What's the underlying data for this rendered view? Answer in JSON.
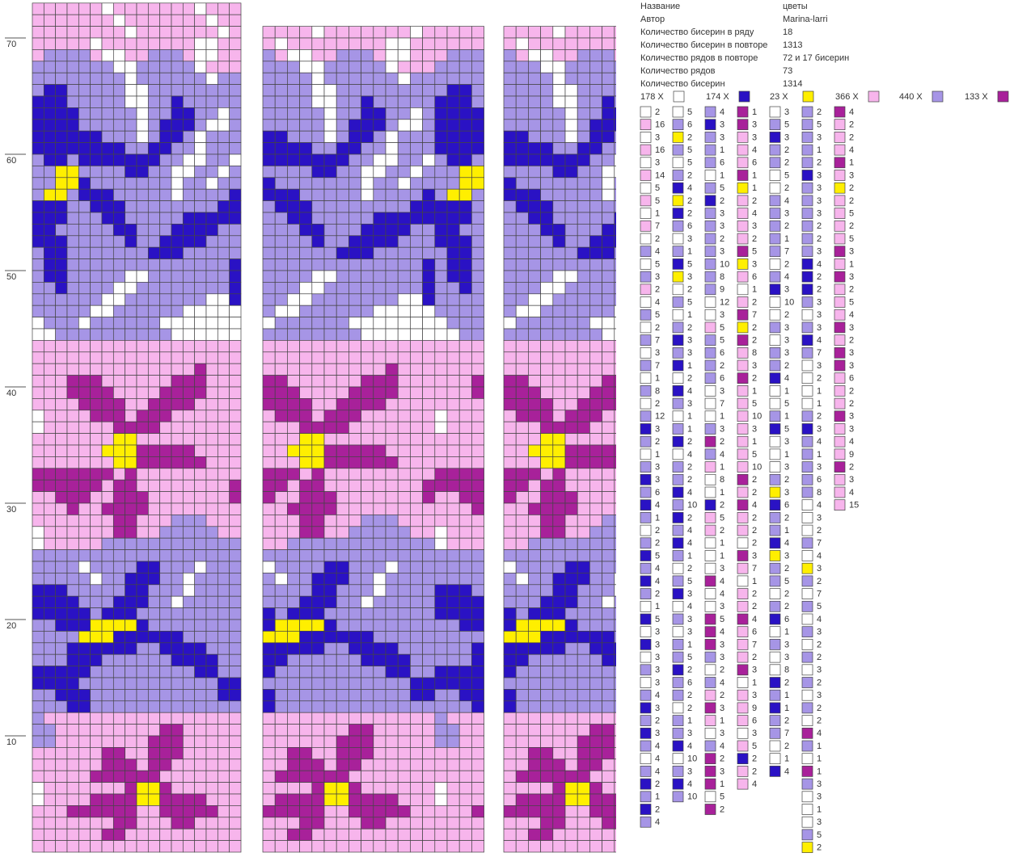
{
  "info": [
    [
      "Название",
      "цветы"
    ],
    [
      "Автор",
      "Marina-larri"
    ],
    [
      "Количество бисерин в ряду",
      "18"
    ],
    [
      "Количество бисерин в повторе",
      "1313"
    ],
    [
      "Количество рядов в повторе",
      "72 и 17 бисерин"
    ],
    [
      "Количество рядов",
      "73"
    ],
    [
      "Количество бисерин",
      "1314"
    ]
  ],
  "palette": {
    "W": "#ffffff",
    "D": "#2a12c4",
    "Y": "#ffef00",
    "P": "#f7b5ec",
    "L": "#a695e6",
    "M": "#a8219a"
  },
  "totals": [
    [
      "W",
      "178 X"
    ],
    [
      "D",
      "174 X"
    ],
    [
      "Y",
      "23 X"
    ],
    [
      "P",
      "366 X"
    ],
    [
      "L",
      "440 X"
    ],
    [
      "M",
      "133 X"
    ]
  ],
  "row_numbers": [
    10,
    20,
    30,
    40,
    50,
    60,
    70
  ],
  "grid": [
    "PPPPPPWPPPPPPPWPPP",
    "PPPPPPPWPPPPPPPWPP",
    "PPPPPPPPWPPPPPPPWP",
    "PPPPPWPPPPPPPPWWPP",
    "PLLLLPWWPPLLLPWWPP",
    "LLLLLLLWWLLLLLWPPP",
    "LLLLLLLLWLLLLLLWLL",
    "LDDLLLLLWWLLLLLLLL",
    "DDDLLLLLWWLLDLLLLL",
    "DDDDLLLLLWLLDDLLWL",
    "DDDDLLLLLWLDDDLWWL",
    "DDDDDDLLLWLDDLWLLL",
    "DDDDDDDDLLDDLLWLLL",
    "LDDLDDDDDDDLLWWLLW",
    "LLYYLLLLDDLLWWLLWL",
    "LLYYDLLLLLLLWLLWLL",
    "LYYLDDDLLLLLWLLLLD",
    "DDDLLDDDLLLLLLLLDD",
    "DDDLLLDDLLLLLDDDDD",
    "DDLLLLLDDLLLDDDDLL",
    "DDDLLLLLDLLDDDDLLL",
    "LDDLLLLLLLDDDLLLLL",
    "LDDLLLLLLLLLLLLLLD",
    "LDDLLLLLWWLLLLLLLD",
    "LLDLLLLWWLLLLLLLLD",
    "LLLLLLWWLLLLLLLWWD",
    "LLLLLWWLLLLLLWWWWW",
    "WLLLWLLLLLLWWWWWWW",
    "WWLLLLLLLLLLWWWWWW",
    "PPPPPPPPPPPPPPPPPP",
    "PPPPPPPPPPPPPPPPPP",
    "PPPPPPPPPPPPPPMPPP",
    "PPPMMMPPPPPPMMMPPP",
    "PPPMMMMPPPPMMMMPPP",
    "PPPPMMMMPPMMMMPPPP",
    "WPPPPMMMPMMMPPPPPP",
    "WPPPPPPMMMMPPPPPPP",
    "PPPPPPPYYPPPPPPPPP",
    "PPPPPPYYYMMMMMPPPP",
    "PPPPPPPYYMMMMMMPPP",
    "MMMMMMMPMPPPPPPPPP",
    "MMMMMMPMMPPPPPPPPM",
    "PPMMMPPMMMPPPPPPPM",
    "PPPMPPMMMMPPPPPPPP",
    "PPPPPPPMMPPPLLLPPP",
    "WPPPPPPMMPPLLLLLPP",
    "WPPPPPLLLLLLLLLLLL",
    "LLLLLLLLLLLLLLLLLL",
    "LLLLWLLLLDDLLLWLLL",
    "LLLLLWLLDDDLLWLLLL",
    "DDDLLLLLDDLLLWLLLL",
    "DDDDLLLDDDLLWLLLLL",
    "DDDDDLDDDLLLLLLLLL",
    "LLDDDYYYYDLLLLLLLL",
    "LLLLYYYDDDDDDLLLLL",
    "LLLDDDDDDLLDDDDLLL",
    "LLLDDDLLLLLLDDDDLL",
    "DDDDDLLLLLLLLLDDLL",
    "DDDDLLLLLLLLLLLLDD",
    "LLDDDLLLLLLLLLLLDD",
    "LLLDDLLLLLLLLLLLLL",
    "LPPPPPPPPPPPPPPPPP",
    "LLPPPPPPPPPMMPPPPP",
    "LLPPPPPPPPMMMPPPPP",
    "PPPPPPMMPPMMMPPPPP",
    "PPPPPPMMMPMMPPPPPP",
    "PPPPPMMMMMMPPPPPPP",
    "WPPPPPPPMYYMPPPPPP",
    "WPPPPMMMMYYMMMMPPP",
    "PPPMMMMMMPPMMMMMPP",
    "PPPPPPPMMPPPMMPPPP",
    "PPPPPPMMPPPPPPPPPP",
    "PPPPPPPPPPPPPPPPPP"
  ],
  "counts": [
    [
      [
        "W",
        2
      ],
      [
        "P",
        16
      ],
      [
        "W",
        3
      ],
      [
        "P",
        16
      ],
      [
        "W",
        3
      ],
      [
        "P",
        14
      ],
      [
        "W",
        5
      ],
      [
        "P",
        5
      ],
      [
        "W",
        1
      ],
      [
        "P",
        7
      ],
      [
        "W",
        2
      ],
      [
        "L",
        4
      ],
      [
        "W",
        5
      ],
      [
        "L",
        3
      ],
      [
        "P",
        2
      ],
      [
        "W",
        4
      ],
      [
        "L",
        5
      ],
      [
        "W",
        2
      ],
      [
        "L",
        7
      ],
      [
        "W",
        3
      ],
      [
        "L",
        7
      ],
      [
        "W",
        1
      ],
      [
        "L",
        8
      ],
      [
        "W",
        2
      ],
      [
        "L",
        12
      ],
      [
        "D",
        3
      ],
      [
        "L",
        2
      ],
      [
        "W",
        1
      ],
      [
        "L",
        3
      ],
      [
        "D",
        3
      ],
      [
        "L",
        6
      ],
      [
        "D",
        4
      ],
      [
        "L",
        1
      ],
      [
        "W",
        2
      ],
      [
        "L",
        2
      ],
      [
        "D",
        5
      ],
      [
        "L",
        4
      ],
      [
        "D",
        4
      ],
      [
        "L",
        2
      ],
      [
        "W",
        1
      ],
      [
        "D",
        5
      ],
      [
        "W",
        3
      ],
      [
        "D",
        3
      ],
      [
        "W",
        3
      ],
      [
        "L",
        3
      ],
      [
        "W",
        3
      ],
      [
        "L",
        4
      ],
      [
        "D",
        3
      ],
      [
        "L",
        2
      ],
      [
        "D",
        3
      ],
      [
        "L",
        4
      ],
      [
        "W",
        4
      ],
      [
        "L",
        4
      ],
      [
        "D",
        2
      ],
      [
        "L",
        1
      ],
      [
        "D",
        2
      ],
      [
        "L",
        4
      ]
    ],
    [
      [
        "W",
        5
      ],
      [
        "L",
        6
      ],
      [
        "Y",
        2
      ],
      [
        "L",
        5
      ],
      [
        "W",
        5
      ],
      [
        "L",
        2
      ],
      [
        "D",
        4
      ],
      [
        "Y",
        2
      ],
      [
        "D",
        2
      ],
      [
        "L",
        6
      ],
      [
        "W",
        3
      ],
      [
        "L",
        1
      ],
      [
        "D",
        5
      ],
      [
        "Y",
        3
      ],
      [
        "W",
        2
      ],
      [
        "L",
        5
      ],
      [
        "W",
        1
      ],
      [
        "L",
        2
      ],
      [
        "D",
        3
      ],
      [
        "L",
        3
      ],
      [
        "D",
        1
      ],
      [
        "W",
        2
      ],
      [
        "D",
        4
      ],
      [
        "L",
        3
      ],
      [
        "W",
        1
      ],
      [
        "L",
        1
      ],
      [
        "D",
        2
      ],
      [
        "W",
        4
      ],
      [
        "L",
        2
      ],
      [
        "L",
        2
      ],
      [
        "D",
        4
      ],
      [
        "L",
        10
      ],
      [
        "D",
        2
      ],
      [
        "L",
        4
      ],
      [
        "D",
        4
      ],
      [
        "L",
        1
      ],
      [
        "W",
        2
      ],
      [
        "L",
        5
      ],
      [
        "D",
        3
      ],
      [
        "W",
        4
      ],
      [
        "L",
        3
      ],
      [
        "W",
        3
      ],
      [
        "L",
        1
      ],
      [
        "L",
        5
      ],
      [
        "D",
        2
      ],
      [
        "L",
        6
      ],
      [
        "L",
        2
      ],
      [
        "W",
        2
      ],
      [
        "L",
        1
      ],
      [
        "L",
        3
      ],
      [
        "D",
        4
      ],
      [
        "W",
        10
      ],
      [
        "L",
        3
      ],
      [
        "D",
        4
      ],
      [
        "L",
        10
      ]
    ],
    [
      [
        "L",
        4
      ],
      [
        "D",
        3
      ],
      [
        "L",
        3
      ],
      [
        "L",
        1
      ],
      [
        "L",
        6
      ],
      [
        "W",
        1
      ],
      [
        "L",
        5
      ],
      [
        "D",
        2
      ],
      [
        "L",
        3
      ],
      [
        "L",
        3
      ],
      [
        "L",
        2
      ],
      [
        "L",
        3
      ],
      [
        "L",
        10
      ],
      [
        "L",
        8
      ],
      [
        "L",
        9
      ],
      [
        "W",
        12
      ],
      [
        "W",
        3
      ],
      [
        "P",
        5
      ],
      [
        "L",
        5
      ],
      [
        "L",
        6
      ],
      [
        "L",
        2
      ],
      [
        "L",
        6
      ],
      [
        "W",
        3
      ],
      [
        "W",
        7
      ],
      [
        "W",
        1
      ],
      [
        "L",
        3
      ],
      [
        "M",
        2
      ],
      [
        "L",
        4
      ],
      [
        "P",
        1
      ],
      [
        "W",
        8
      ],
      [
        "W",
        1
      ],
      [
        "D",
        2
      ],
      [
        "P",
        5
      ],
      [
        "P",
        2
      ],
      [
        "W",
        1
      ],
      [
        "W",
        1
      ],
      [
        "W",
        3
      ],
      [
        "M",
        4
      ],
      [
        "W",
        4
      ],
      [
        "W",
        3
      ],
      [
        "M",
        5
      ],
      [
        "M",
        4
      ],
      [
        "M",
        3
      ],
      [
        "L",
        3
      ],
      [
        "W",
        2
      ],
      [
        "L",
        4
      ],
      [
        "P",
        2
      ],
      [
        "M",
        3
      ],
      [
        "P",
        1
      ],
      [
        "W",
        3
      ],
      [
        "L",
        4
      ],
      [
        "M",
        2
      ],
      [
        "M",
        3
      ],
      [
        "M",
        1
      ],
      [
        "W",
        5
      ],
      [
        "M",
        2
      ]
    ],
    [
      [
        "M",
        1
      ],
      [
        "M",
        3
      ],
      [
        "P",
        3
      ],
      [
        "P",
        4
      ],
      [
        "P",
        6
      ],
      [
        "M",
        1
      ],
      [
        "Y",
        1
      ],
      [
        "P",
        2
      ],
      [
        "P",
        4
      ],
      [
        "P",
        3
      ],
      [
        "P",
        2
      ],
      [
        "M",
        5
      ],
      [
        "Y",
        3
      ],
      [
        "P",
        6
      ],
      [
        "W",
        1
      ],
      [
        "P",
        2
      ],
      [
        "M",
        7
      ],
      [
        "Y",
        2
      ],
      [
        "M",
        2
      ],
      [
        "P",
        8
      ],
      [
        "P",
        3
      ],
      [
        "M",
        2
      ],
      [
        "P",
        1
      ],
      [
        "P",
        5
      ],
      [
        "P",
        10
      ],
      [
        "P",
        3
      ],
      [
        "P",
        1
      ],
      [
        "P",
        5
      ],
      [
        "P",
        10
      ],
      [
        "M",
        2
      ],
      [
        "P",
        2
      ],
      [
        "M",
        4
      ],
      [
        "P",
        2
      ],
      [
        "P",
        2
      ],
      [
        "W",
        2
      ],
      [
        "M",
        3
      ],
      [
        "P",
        7
      ],
      [
        "W",
        1
      ],
      [
        "P",
        2
      ],
      [
        "P",
        2
      ],
      [
        "M",
        4
      ],
      [
        "P",
        6
      ],
      [
        "P",
        7
      ],
      [
        "P",
        2
      ],
      [
        "M",
        3
      ],
      [
        "W",
        1
      ],
      [
        "P",
        3
      ],
      [
        "P",
        9
      ],
      [
        "P",
        6
      ],
      [
        "W",
        3
      ],
      [
        "P",
        5
      ],
      [
        "D",
        2
      ],
      [
        "P",
        2
      ],
      [
        "P",
        4
      ]
    ],
    [
      [
        "W",
        3
      ],
      [
        "L",
        5
      ],
      [
        "D",
        3
      ],
      [
        "L",
        2
      ],
      [
        "L",
        2
      ],
      [
        "W",
        5
      ],
      [
        "W",
        2
      ],
      [
        "L",
        4
      ],
      [
        "L",
        3
      ],
      [
        "L",
        2
      ],
      [
        "L",
        1
      ],
      [
        "L",
        7
      ],
      [
        "W",
        2
      ],
      [
        "L",
        4
      ],
      [
        "D",
        3
      ],
      [
        "W",
        10
      ],
      [
        "W",
        2
      ],
      [
        "L",
        3
      ],
      [
        "W",
        3
      ],
      [
        "L",
        3
      ],
      [
        "L",
        2
      ],
      [
        "D",
        4
      ],
      [
        "W",
        1
      ],
      [
        "W",
        5
      ],
      [
        "L",
        1
      ],
      [
        "D",
        5
      ],
      [
        "W",
        3
      ],
      [
        "W",
        1
      ],
      [
        "W",
        3
      ],
      [
        "L",
        2
      ],
      [
        "Y",
        3
      ],
      [
        "D",
        6
      ],
      [
        "L",
        2
      ],
      [
        "L",
        1
      ],
      [
        "D",
        4
      ],
      [
        "Y",
        3
      ],
      [
        "L",
        2
      ],
      [
        "L",
        5
      ],
      [
        "W",
        2
      ],
      [
        "L",
        2
      ],
      [
        "D",
        6
      ],
      [
        "W",
        1
      ],
      [
        "L",
        3
      ],
      [
        "W",
        3
      ],
      [
        "W",
        8
      ],
      [
        "D",
        2
      ],
      [
        "L",
        1
      ],
      [
        "D",
        1
      ],
      [
        "L",
        2
      ],
      [
        "L",
        7
      ],
      [
        "W",
        2
      ],
      [
        "W",
        1
      ],
      [
        "D",
        4
      ]
    ],
    [
      [
        "L",
        2
      ],
      [
        "L",
        5
      ],
      [
        "L",
        3
      ],
      [
        "L",
        1
      ],
      [
        "L",
        2
      ],
      [
        "D",
        3
      ],
      [
        "L",
        3
      ],
      [
        "L",
        3
      ],
      [
        "L",
        3
      ],
      [
        "L",
        2
      ],
      [
        "L",
        2
      ],
      [
        "L",
        3
      ],
      [
        "D",
        4
      ],
      [
        "D",
        2
      ],
      [
        "D",
        2
      ],
      [
        "L",
        3
      ],
      [
        "W",
        3
      ],
      [
        "L",
        3
      ],
      [
        "D",
        4
      ],
      [
        "L",
        7
      ],
      [
        "W",
        3
      ],
      [
        "W",
        2
      ],
      [
        "W",
        1
      ],
      [
        "W",
        1
      ],
      [
        "L",
        2
      ],
      [
        "D",
        3
      ],
      [
        "L",
        4
      ],
      [
        "L",
        1
      ],
      [
        "L",
        3
      ],
      [
        "L",
        6
      ],
      [
        "L",
        8
      ],
      [
        "W",
        4
      ],
      [
        "W",
        3
      ],
      [
        "W",
        2
      ],
      [
        "L",
        7
      ],
      [
        "W",
        4
      ],
      [
        "Y",
        3
      ],
      [
        "L",
        2
      ],
      [
        "W",
        7
      ],
      [
        "L",
        5
      ],
      [
        "W",
        4
      ],
      [
        "L",
        3
      ],
      [
        "W",
        2
      ],
      [
        "L",
        2
      ],
      [
        "W",
        3
      ],
      [
        "L",
        2
      ],
      [
        "W",
        3
      ],
      [
        "L",
        2
      ],
      [
        "W",
        2
      ],
      [
        "M",
        4
      ],
      [
        "L",
        1
      ],
      [
        "W",
        1
      ],
      [
        "M",
        1
      ],
      [
        "L",
        3
      ],
      [
        "W",
        3
      ],
      [
        "W",
        1
      ],
      [
        "W",
        3
      ],
      [
        "L",
        5
      ],
      [
        "Y",
        2
      ]
    ],
    [
      [
        "M",
        4
      ],
      [
        "P",
        2
      ],
      [
        "P",
        2
      ],
      [
        "P",
        4
      ],
      [
        "M",
        1
      ],
      [
        "P",
        3
      ],
      [
        "Y",
        2
      ],
      [
        "P",
        2
      ],
      [
        "P",
        5
      ],
      [
        "P",
        2
      ],
      [
        "P",
        5
      ],
      [
        "M",
        3
      ],
      [
        "P",
        1
      ],
      [
        "M",
        3
      ],
      [
        "P",
        2
      ],
      [
        "P",
        5
      ],
      [
        "P",
        4
      ],
      [
        "M",
        3
      ],
      [
        "P",
        2
      ],
      [
        "M",
        3
      ],
      [
        "M",
        3
      ],
      [
        "P",
        6
      ],
      [
        "P",
        2
      ],
      [
        "P",
        2
      ],
      [
        "M",
        3
      ],
      [
        "P",
        3
      ],
      [
        "P",
        4
      ],
      [
        "P",
        9
      ],
      [
        "M",
        2
      ],
      [
        "P",
        3
      ],
      [
        "P",
        4
      ],
      [
        "P",
        15
      ]
    ]
  ]
}
